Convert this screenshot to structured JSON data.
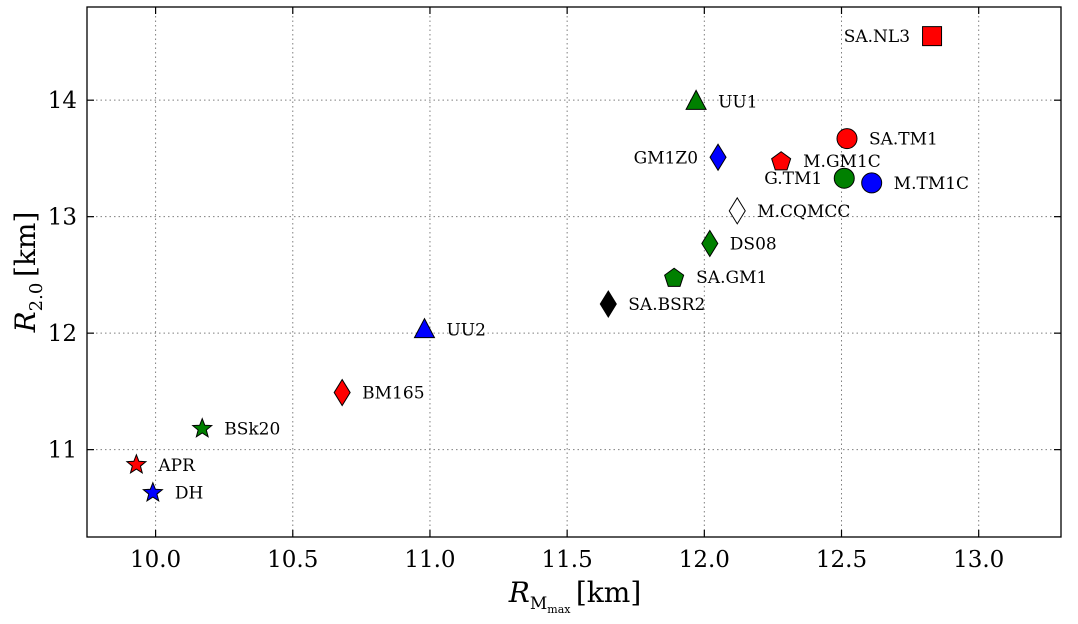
{
  "chart_data": {
    "type": "scatter",
    "title": "",
    "xlabel": {
      "main": "R",
      "sub": "M",
      "subsub": "max",
      "unit": "[km]"
    },
    "ylabel": {
      "main": "R",
      "sub": "2.0",
      "unit": "[km]"
    },
    "xlim": [
      9.75,
      13.3
    ],
    "ylim": [
      10.25,
      14.8
    ],
    "xticks": [
      10.0,
      10.5,
      11.0,
      11.5,
      12.0,
      12.5,
      13.0
    ],
    "xtick_labels": [
      "10.0",
      "10.5",
      "11.0",
      "11.5",
      "12.0",
      "12.5",
      "13.0"
    ],
    "yticks": [
      11,
      12,
      13,
      14
    ],
    "ytick_labels": [
      "11",
      "12",
      "13",
      "14"
    ],
    "grid": true,
    "points": [
      {
        "label": "SA.NL3",
        "x": 12.83,
        "y": 14.55,
        "marker": "square",
        "color": "#ff0000",
        "label_side": "left"
      },
      {
        "label": "UU1",
        "x": 11.97,
        "y": 13.99,
        "marker": "triangle",
        "color": "#008000",
        "label_side": "right"
      },
      {
        "label": "SA.TM1",
        "x": 12.52,
        "y": 13.67,
        "marker": "circle",
        "color": "#ff0000",
        "label_side": "right"
      },
      {
        "label": "GM1Z0",
        "x": 12.05,
        "y": 13.51,
        "marker": "diamond",
        "color": "#0000ff",
        "label_side": "left"
      },
      {
        "label": "M.GM1C",
        "x": 12.28,
        "y": 13.48,
        "marker": "pentagon",
        "color": "#ff0000",
        "label_side": "right"
      },
      {
        "label": "G.TM1",
        "x": 12.51,
        "y": 13.33,
        "marker": "circle",
        "color": "#008000",
        "label_side": "left"
      },
      {
        "label": "M.TM1C",
        "x": 12.61,
        "y": 13.29,
        "marker": "circle",
        "color": "#0000ff",
        "label_side": "right"
      },
      {
        "label": "M.CQMCC",
        "x": 12.12,
        "y": 13.05,
        "marker": "diamond",
        "color": "#ffffff",
        "label_side": "right"
      },
      {
        "label": "DS08",
        "x": 12.02,
        "y": 12.77,
        "marker": "diamond",
        "color": "#008000",
        "label_side": "right"
      },
      {
        "label": "SA.GM1",
        "x": 11.89,
        "y": 12.48,
        "marker": "pentagon",
        "color": "#008000",
        "label_side": "right"
      },
      {
        "label": "SA.BSR2",
        "x": 11.65,
        "y": 12.25,
        "marker": "diamond",
        "color": "#000000",
        "label_side": "right"
      },
      {
        "label": "UU2",
        "x": 10.98,
        "y": 12.03,
        "marker": "triangle",
        "color": "#0000ff",
        "label_side": "right"
      },
      {
        "label": "BM165",
        "x": 10.68,
        "y": 11.49,
        "marker": "diamond",
        "color": "#ff0000",
        "label_side": "right"
      },
      {
        "label": "BSk20",
        "x": 10.17,
        "y": 11.18,
        "marker": "star",
        "color": "#008000",
        "label_side": "right"
      },
      {
        "label": "APR",
        "x": 9.93,
        "y": 10.87,
        "marker": "star",
        "color": "#ff0000",
        "label_side": "right"
      },
      {
        "label": "DH",
        "x": 9.99,
        "y": 10.63,
        "marker": "star",
        "color": "#0000ff",
        "label_side": "right"
      }
    ]
  }
}
